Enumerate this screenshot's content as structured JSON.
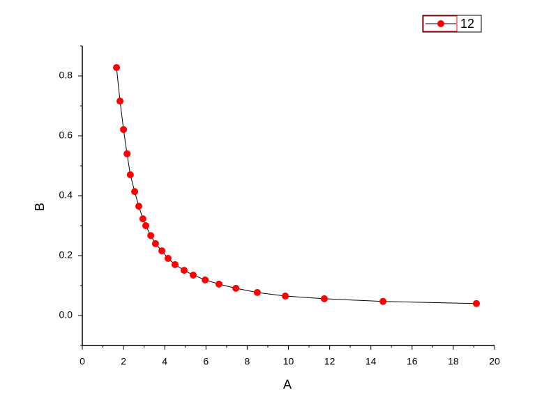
{
  "chart_data": {
    "type": "line",
    "xlabel": "A",
    "ylabel": "B",
    "xlim": [
      0,
      20
    ],
    "ylim": [
      -0.1,
      0.9
    ],
    "xticks": [
      0,
      2,
      4,
      6,
      8,
      10,
      12,
      14,
      16,
      18,
      20
    ],
    "yticks": [
      {
        "value": 0,
        "label": "0.0"
      },
      0.2,
      0.4,
      0.6,
      0.8
    ],
    "legend": "top-right",
    "series": [
      {
        "name": "12",
        "color": "#ff0000",
        "line_color": "#000000",
        "x": [
          1.66,
          1.83,
          2.0,
          2.17,
          2.33,
          2.54,
          2.74,
          2.94,
          3.08,
          3.32,
          3.55,
          3.86,
          4.16,
          4.5,
          4.94,
          5.38,
          5.96,
          6.63,
          7.45,
          8.49,
          9.85,
          11.74,
          14.59,
          19.12
        ],
        "values": [
          0.828,
          0.716,
          0.621,
          0.54,
          0.47,
          0.414,
          0.365,
          0.323,
          0.3,
          0.267,
          0.24,
          0.216,
          0.191,
          0.17,
          0.151,
          0.135,
          0.119,
          0.105,
          0.091,
          0.077,
          0.065,
          0.056,
          0.047,
          0.04
        ]
      }
    ]
  }
}
